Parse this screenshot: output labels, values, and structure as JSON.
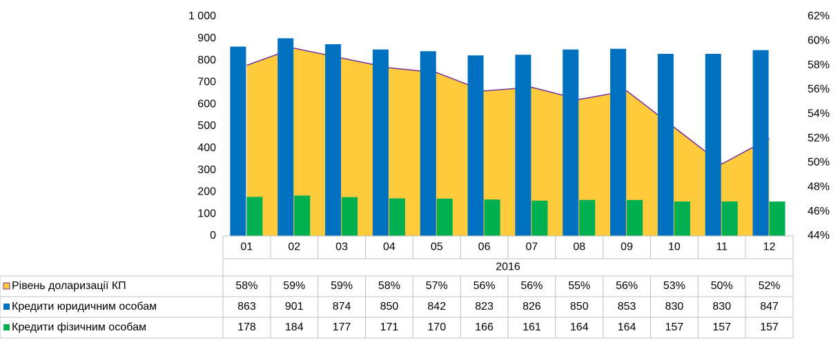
{
  "chart_data": {
    "type": "bar",
    "x_group_label": "2016",
    "categories": [
      "01",
      "02",
      "03",
      "04",
      "05",
      "06",
      "07",
      "08",
      "09",
      "10",
      "11",
      "12"
    ],
    "ylim": [
      0,
      1000
    ],
    "yticks": [
      0,
      100,
      200,
      300,
      400,
      500,
      600,
      700,
      800,
      900,
      {
        "value": 1000,
        "label": "1 000"
      }
    ],
    "y2lim": [
      44,
      62
    ],
    "y2ticks": [
      {
        "value": 44,
        "label": "44%"
      },
      {
        "value": 46,
        "label": "46%"
      },
      {
        "value": 48,
        "label": "48%"
      },
      {
        "value": 50,
        "label": "50%"
      },
      {
        "value": 52,
        "label": "52%"
      },
      {
        "value": 54,
        "label": "54%"
      },
      {
        "value": 56,
        "label": "56%"
      },
      {
        "value": 58,
        "label": "58%"
      },
      {
        "value": 60,
        "label": "60%"
      },
      {
        "value": 62,
        "label": "62%"
      }
    ],
    "series": [
      {
        "name": "Рівень доларизації КП",
        "type": "area",
        "axis": "y2",
        "color": "#fecb3c",
        "line_color": "#7030a0",
        "values": [
          58.0,
          59.4,
          58.6,
          57.8,
          57.4,
          55.9,
          56.2,
          55.2,
          55.9,
          52.9,
          49.9,
          52.0
        ],
        "value_labels": [
          "58%",
          "59%",
          "59%",
          "58%",
          "57%",
          "56%",
          "56%",
          "55%",
          "56%",
          "53%",
          "50%",
          "52%"
        ]
      },
      {
        "name": "Кредити юридичним особам",
        "type": "bar",
        "color": "#0070c0",
        "values": [
          863,
          901,
          874,
          850,
          842,
          823,
          826,
          850,
          853,
          830,
          830,
          847
        ]
      },
      {
        "name": "Кредити фізичним особам",
        "type": "bar",
        "color": "#00b050",
        "values": [
          178,
          184,
          177,
          171,
          170,
          166,
          161,
          164,
          164,
          157,
          157,
          157
        ]
      }
    ]
  }
}
